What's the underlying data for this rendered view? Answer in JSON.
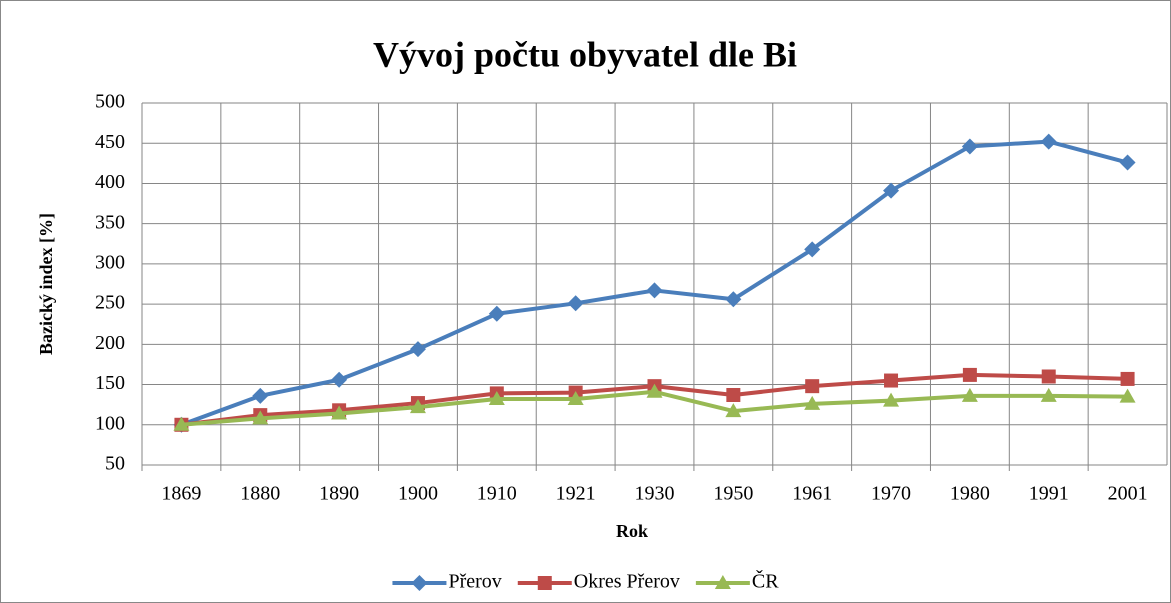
{
  "chart_data": {
    "type": "line",
    "title": "Vývoj počtu obyvatel dle Bi",
    "xlabel": "Rok",
    "ylabel": "Bazický index [%]",
    "categories": [
      "1869",
      "1880",
      "1890",
      "1900",
      "1910",
      "1921",
      "1930",
      "1950",
      "1961",
      "1970",
      "1980",
      "1991",
      "2001"
    ],
    "series": [
      {
        "name": "Přerov",
        "color": "#4a7ebb",
        "marker": "diamond",
        "values": [
          100,
          136,
          156,
          194,
          238,
          251,
          267,
          256,
          318,
          391,
          446,
          452,
          426
        ]
      },
      {
        "name": "Okres Přerov",
        "color": "#be4b48",
        "marker": "square",
        "values": [
          100,
          112,
          118,
          127,
          139,
          140,
          148,
          137,
          148,
          155,
          162,
          160,
          157
        ]
      },
      {
        "name": "ČR",
        "color": "#98b954",
        "marker": "triangle",
        "values": [
          100,
          108,
          114,
          122,
          132,
          132,
          141,
          117,
          126,
          130,
          136,
          136,
          135
        ]
      }
    ],
    "ylim": [
      50,
      500
    ],
    "yticks": [
      50,
      100,
      150,
      200,
      250,
      300,
      350,
      400,
      450,
      500
    ],
    "grid": true,
    "legend": "bottom"
  }
}
